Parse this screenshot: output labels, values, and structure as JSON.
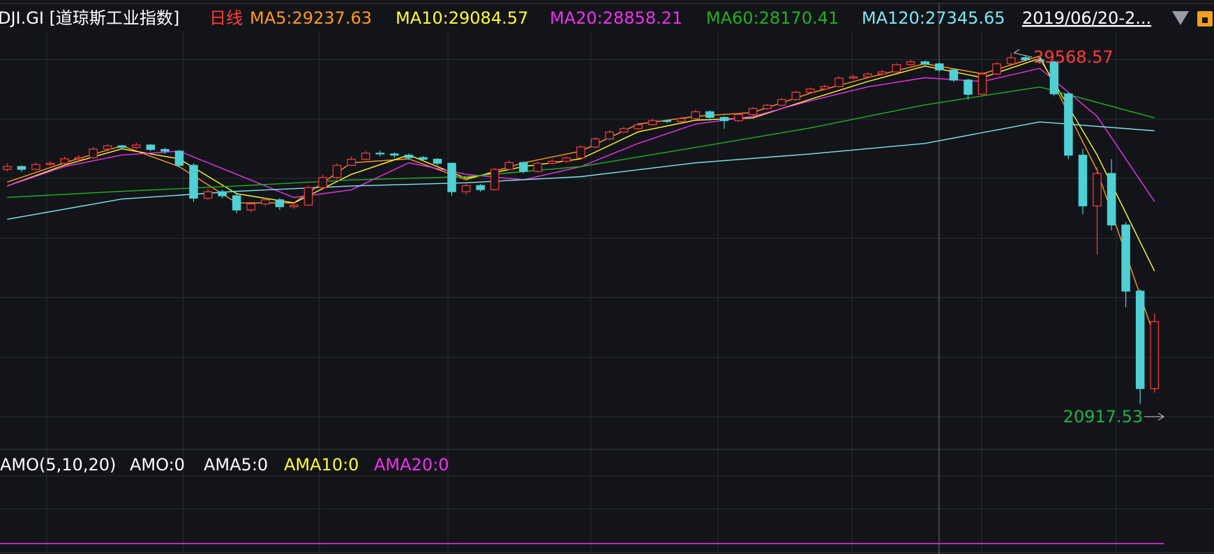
{
  "chart_data": {
    "type": "candlestick",
    "title": "DJI.GI [道琼斯工业指数]",
    "period": "日线",
    "date_range": "2019/06/20-2...",
    "up_color": "#ff3c3c",
    "down_color": "#4fd0d4",
    "ylim": [
      19800,
      30100
    ],
    "candles": [
      [
        26700,
        26850,
        26650,
        26770
      ],
      [
        26770,
        26800,
        26640,
        26700
      ],
      [
        26700,
        26870,
        26680,
        26820
      ],
      [
        26820,
        26900,
        26780,
        26850
      ],
      [
        26850,
        27010,
        26820,
        26960
      ],
      [
        26960,
        27050,
        26900,
        26990
      ],
      [
        26990,
        27250,
        26960,
        27200
      ],
      [
        27200,
        27320,
        27150,
        27280
      ],
      [
        27280,
        27310,
        27190,
        27240
      ],
      [
        27240,
        27360,
        27200,
        27300
      ],
      [
        27300,
        27330,
        27150,
        27190
      ],
      [
        27190,
        27230,
        27080,
        27150
      ],
      [
        27150,
        27180,
        26750,
        26800
      ],
      [
        26800,
        26850,
        25900,
        25990
      ],
      [
        25990,
        26220,
        25940,
        26150
      ],
      [
        26150,
        26200,
        25990,
        26050
      ],
      [
        26050,
        26090,
        25620,
        25700
      ],
      [
        25700,
        25900,
        25650,
        25850
      ],
      [
        25850,
        26010,
        25800,
        25950
      ],
      [
        25950,
        25990,
        25700,
        25780
      ],
      [
        25780,
        25880,
        25730,
        25820
      ],
      [
        25820,
        26300,
        25800,
        26250
      ],
      [
        26250,
        26560,
        26200,
        26500
      ],
      [
        26500,
        26850,
        26460,
        26800
      ],
      [
        26800,
        27020,
        26780,
        26950
      ],
      [
        26950,
        27150,
        26920,
        27100
      ],
      [
        27100,
        27160,
        27020,
        27080
      ],
      [
        27080,
        27120,
        26980,
        27050
      ],
      [
        27050,
        27090,
        26940,
        26990
      ],
      [
        26990,
        27030,
        26900,
        26950
      ],
      [
        26950,
        26980,
        26800,
        26850
      ],
      [
        26850,
        26870,
        26050,
        26150
      ],
      [
        26150,
        26350,
        26080,
        26300
      ],
      [
        26300,
        26340,
        26150,
        26200
      ],
      [
        26200,
        26740,
        26180,
        26700
      ],
      [
        26700,
        26920,
        26680,
        26870
      ],
      [
        26870,
        26900,
        26600,
        26650
      ],
      [
        26650,
        26890,
        26620,
        26850
      ],
      [
        26850,
        26950,
        26820,
        26900
      ],
      [
        26900,
        27020,
        26860,
        26980
      ],
      [
        26980,
        27290,
        26950,
        27250
      ],
      [
        27250,
        27490,
        27220,
        27450
      ],
      [
        27450,
        27660,
        27420,
        27620
      ],
      [
        27620,
        27750,
        27600,
        27700
      ],
      [
        27700,
        27850,
        27680,
        27800
      ],
      [
        27800,
        27950,
        27780,
        27900
      ],
      [
        27900,
        27930,
        27840,
        27880
      ],
      [
        27880,
        27990,
        27850,
        27950
      ],
      [
        27950,
        28170,
        27930,
        28120
      ],
      [
        28120,
        28150,
        27900,
        27980
      ],
      [
        27980,
        28010,
        27700,
        27900
      ],
      [
        27900,
        28090,
        27870,
        28050
      ],
      [
        28050,
        28240,
        28020,
        28200
      ],
      [
        28200,
        28320,
        28170,
        28280
      ],
      [
        28280,
        28460,
        28250,
        28420
      ],
      [
        28420,
        28640,
        28400,
        28600
      ],
      [
        28600,
        28720,
        28570,
        28680
      ],
      [
        28680,
        28790,
        28650,
        28740
      ],
      [
        28740,
        28990,
        28720,
        28950
      ],
      [
        28950,
        29030,
        28920,
        28980
      ],
      [
        28980,
        29090,
        28950,
        29050
      ],
      [
        29050,
        29150,
        29010,
        29100
      ],
      [
        29100,
        29320,
        29080,
        29280
      ],
      [
        29280,
        29400,
        29250,
        29350
      ],
      [
        29350,
        29380,
        29250,
        29300
      ],
      [
        29300,
        29330,
        29100,
        29150
      ],
      [
        29150,
        29180,
        28850,
        28900
      ],
      [
        28900,
        28930,
        28420,
        28550
      ],
      [
        28550,
        29100,
        28530,
        29050
      ],
      [
        29050,
        29340,
        29020,
        29300
      ],
      [
        29300,
        29568.57,
        29280,
        29450
      ],
      [
        29450,
        29500,
        29360,
        29400
      ],
      [
        29400,
        29460,
        29300,
        29350
      ],
      [
        29350,
        29380,
        28500,
        28560
      ],
      [
        28560,
        28600,
        26950,
        27050
      ],
      [
        27050,
        27200,
        25600,
        25800
      ],
      [
        25800,
        26750,
        24600,
        26600
      ],
      [
        26600,
        26950,
        25200,
        25330
      ],
      [
        25330,
        25400,
        23300,
        23700
      ],
      [
        23700,
        23750,
        20917.53,
        21300
      ],
      [
        21300,
        23150,
        21200,
        22950
      ]
    ],
    "series": [
      {
        "name": "MA5:29237.63",
        "color": "#ff9a1f",
        "x": [
          0,
          4,
          8,
          12,
          16,
          20,
          24,
          28,
          32,
          36,
          40,
          44,
          48,
          52,
          56,
          60,
          64,
          68,
          72,
          76,
          80
        ],
        "values": [
          26387,
          26863,
          27282,
          26768,
          25873,
          25873,
          26863,
          26958,
          26444,
          26863,
          27149,
          27816,
          28006,
          28102,
          28578,
          28959,
          29302,
          29055,
          29493,
          26672,
          22576
        ]
      },
      {
        "name": "MA10:29084.57",
        "color": "#ffff33",
        "x": [
          0,
          4,
          8,
          12,
          16,
          20,
          24,
          28,
          32,
          36,
          40,
          44,
          48,
          52,
          56,
          60,
          64,
          68,
          72,
          76,
          80
        ],
        "values": [
          26291,
          26806,
          27206,
          26958,
          26101,
          25873,
          26577,
          27054,
          26482,
          26768,
          26958,
          27625,
          27911,
          27968,
          28426,
          28864,
          29245,
          28959,
          29436,
          27054,
          24196
        ]
      },
      {
        "name": "MA20:28858.21",
        "color": "#ee33ee",
        "x": [
          0,
          4,
          8,
          12,
          16,
          20,
          24,
          28,
          32,
          36,
          40,
          44,
          48,
          52,
          56,
          60,
          64,
          68,
          72,
          76,
          80
        ],
        "values": [
          26291,
          26768,
          27054,
          27149,
          26577,
          26006,
          26196,
          26863,
          26577,
          26444,
          26768,
          27340,
          27816,
          28006,
          28388,
          28731,
          28959,
          28864,
          29188,
          28006,
          25910
        ]
      },
      {
        "name": "MA60:28170.41",
        "color": "#22b022",
        "x": [
          0,
          8,
          16,
          24,
          32,
          40,
          48,
          56,
          64,
          72,
          80
        ],
        "values": [
          26010,
          26160,
          26290,
          26440,
          26520,
          26770,
          27240,
          27720,
          28290,
          28730,
          27970
        ]
      },
      {
        "name": "MA120:27345.65",
        "color": "#7fe8f0",
        "x": [
          0,
          8,
          16,
          24,
          32,
          40,
          48,
          56,
          64,
          72,
          80
        ],
        "values": [
          25470,
          25970,
          26160,
          26290,
          26370,
          26520,
          26860,
          27080,
          27340,
          27870,
          27650
        ]
      }
    ],
    "high_mark": {
      "candle": 70,
      "color": "#ff3c3c"
    },
    "low_mark": {
      "candle": 79,
      "color": "#22b04a"
    },
    "indicator": {
      "title": "AMO(5,10,20)",
      "labels": [
        {
          "text": "AMO:0",
          "color": "#ffffff"
        },
        {
          "text": "AMA5:0",
          "color": "#ffffff"
        },
        {
          "text": "AMA10:0",
          "color": "#ffff33"
        },
        {
          "text": "AMA20:0",
          "color": "#ee33ee"
        }
      ],
      "line_color": "#ee33ee"
    }
  }
}
